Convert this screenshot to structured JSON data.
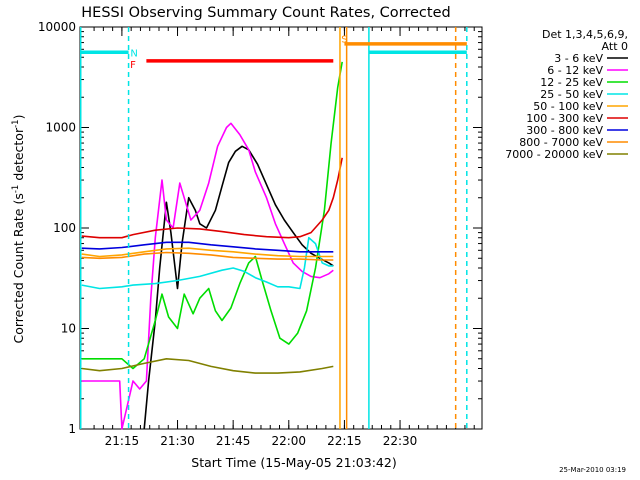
{
  "chart_data": {
    "type": "line",
    "title": "HESSI Observing Summary Count Rates, Corrected",
    "xlabel": "Start Time (15-May-05 21:03:42)",
    "ylabel": "Corrected Count Rate (s",
    "ylabel_sup": "-1",
    "ylabel_mid": " detector",
    "ylabel_end": ")",
    "footer": "25-Mar-2010 03:19",
    "yscale": "log",
    "xlim": [
      21.0617,
      22.8683
    ],
    "ylim": [
      1,
      10000
    ],
    "xticks": [
      {
        "value": 21.25,
        "label": "21:15"
      },
      {
        "value": 21.5,
        "label": "21:30"
      },
      {
        "value": 21.75,
        "label": "21:45"
      },
      {
        "value": 22.0,
        "label": "22:00"
      },
      {
        "value": 22.25,
        "label": "22:15"
      },
      {
        "value": 22.5,
        "label": "22:30"
      }
    ],
    "yticks": [
      {
        "value": 1,
        "label": "1"
      },
      {
        "value": 10,
        "label": "10"
      },
      {
        "value": 100,
        "label": "100"
      },
      {
        "value": 1000,
        "label": "1000"
      },
      {
        "value": 10000,
        "label": "10000"
      }
    ],
    "legend_title": [
      "Det 1,3,4,5,6,9,",
      "Att 0"
    ],
    "legend_position": "right",
    "series": [
      {
        "name": "3 - 6 keV",
        "color": "#000000",
        "points": [
          [
            21.35,
            1
          ],
          [
            21.37,
            3
          ],
          [
            21.4,
            12
          ],
          [
            21.42,
            40
          ],
          [
            21.45,
            180
          ],
          [
            21.47,
            90
          ],
          [
            21.5,
            25
          ],
          [
            21.52,
            70
          ],
          [
            21.55,
            200
          ],
          [
            21.58,
            150
          ],
          [
            21.6,
            110
          ],
          [
            21.63,
            100
          ],
          [
            21.67,
            150
          ],
          [
            21.7,
            260
          ],
          [
            21.73,
            450
          ],
          [
            21.76,
            580
          ],
          [
            21.79,
            650
          ],
          [
            21.82,
            600
          ],
          [
            21.86,
            430
          ],
          [
            21.9,
            270
          ],
          [
            21.94,
            170
          ],
          [
            21.98,
            120
          ],
          [
            22.02,
            90
          ],
          [
            22.06,
            68
          ],
          [
            22.1,
            56
          ],
          [
            22.14,
            50
          ],
          [
            22.18,
            45
          ],
          [
            22.2,
            42
          ]
        ]
      },
      {
        "name": "6 - 12 keV",
        "color": "#ff00ff",
        "points": [
          [
            21.07,
            3
          ],
          [
            21.15,
            3
          ],
          [
            21.2,
            3
          ],
          [
            21.24,
            3
          ],
          [
            21.25,
            1
          ],
          [
            21.3,
            3
          ],
          [
            21.33,
            2.5
          ],
          [
            21.36,
            3
          ],
          [
            21.38,
            20
          ],
          [
            21.4,
            80
          ],
          [
            21.43,
            300
          ],
          [
            21.45,
            120
          ],
          [
            21.48,
            100
          ],
          [
            21.51,
            280
          ],
          [
            21.53,
            200
          ],
          [
            21.56,
            120
          ],
          [
            21.6,
            150
          ],
          [
            21.64,
            280
          ],
          [
            21.68,
            650
          ],
          [
            21.72,
            1000
          ],
          [
            21.74,
            1100
          ],
          [
            21.78,
            850
          ],
          [
            21.82,
            600
          ],
          [
            21.85,
            360
          ],
          [
            21.9,
            200
          ],
          [
            21.94,
            110
          ],
          [
            21.98,
            70
          ],
          [
            22.02,
            45
          ],
          [
            22.06,
            37
          ],
          [
            22.1,
            33
          ],
          [
            22.14,
            32
          ],
          [
            22.18,
            35
          ],
          [
            22.2,
            38
          ]
        ]
      },
      {
        "name": "12 - 25 keV",
        "color": "#00dd00",
        "points": [
          [
            21.07,
            5
          ],
          [
            21.15,
            5
          ],
          [
            21.25,
            5
          ],
          [
            21.3,
            4
          ],
          [
            21.35,
            5
          ],
          [
            21.4,
            12
          ],
          [
            21.43,
            22
          ],
          [
            21.46,
            13
          ],
          [
            21.5,
            10
          ],
          [
            21.53,
            22
          ],
          [
            21.57,
            14
          ],
          [
            21.6,
            20
          ],
          [
            21.64,
            25
          ],
          [
            21.67,
            15
          ],
          [
            21.7,
            12
          ],
          [
            21.74,
            16
          ],
          [
            21.78,
            28
          ],
          [
            21.82,
            45
          ],
          [
            21.85,
            52
          ],
          [
            21.88,
            30
          ],
          [
            21.92,
            15
          ],
          [
            21.96,
            8
          ],
          [
            22.0,
            7
          ],
          [
            22.04,
            9
          ],
          [
            22.08,
            15
          ],
          [
            22.12,
            40
          ],
          [
            22.16,
            150
          ],
          [
            22.19,
            700
          ],
          [
            22.22,
            2500
          ],
          [
            22.24,
            4500
          ]
        ]
      },
      {
        "name": "25 - 50 keV",
        "color": "#00e5e5",
        "points": [
          [
            21.07,
            27
          ],
          [
            21.15,
            25
          ],
          [
            21.25,
            26
          ],
          [
            21.3,
            27
          ],
          [
            21.4,
            28
          ],
          [
            21.5,
            30
          ],
          [
            21.6,
            33
          ],
          [
            21.7,
            38
          ],
          [
            21.75,
            40
          ],
          [
            21.8,
            37
          ],
          [
            21.85,
            32
          ],
          [
            21.9,
            29
          ],
          [
            21.95,
            26
          ],
          [
            22.0,
            26
          ],
          [
            22.05,
            25
          ],
          [
            22.07,
            40
          ],
          [
            22.09,
            80
          ],
          [
            22.12,
            70
          ],
          [
            22.15,
            45
          ],
          [
            22.18,
            42
          ],
          [
            22.2,
            42
          ]
        ]
      },
      {
        "name": "50 - 100 keV",
        "color": "#ffa500",
        "points": [
          [
            21.07,
            55
          ],
          [
            21.15,
            52
          ],
          [
            21.25,
            54
          ],
          [
            21.35,
            58
          ],
          [
            21.45,
            62
          ],
          [
            21.55,
            63
          ],
          [
            21.65,
            60
          ],
          [
            21.75,
            58
          ],
          [
            21.85,
            55
          ],
          [
            21.95,
            53
          ],
          [
            22.05,
            52
          ],
          [
            22.15,
            52
          ],
          [
            22.2,
            52
          ]
        ]
      },
      {
        "name": "100 - 300 keV",
        "color": "#dd0000",
        "points": [
          [
            21.07,
            83
          ],
          [
            21.15,
            80
          ],
          [
            21.25,
            80
          ],
          [
            21.3,
            86
          ],
          [
            21.4,
            95
          ],
          [
            21.5,
            100
          ],
          [
            21.6,
            98
          ],
          [
            21.7,
            92
          ],
          [
            21.8,
            86
          ],
          [
            21.9,
            82
          ],
          [
            22.0,
            80
          ],
          [
            22.05,
            82
          ],
          [
            22.1,
            90
          ],
          [
            22.15,
            120
          ],
          [
            22.18,
            150
          ],
          [
            22.2,
            200
          ],
          [
            22.22,
            300
          ],
          [
            22.24,
            500
          ]
        ]
      },
      {
        "name": "300 - 800 keV",
        "color": "#0000dd",
        "points": [
          [
            21.07,
            63
          ],
          [
            21.15,
            62
          ],
          [
            21.25,
            64
          ],
          [
            21.35,
            68
          ],
          [
            21.45,
            72
          ],
          [
            21.55,
            72
          ],
          [
            21.65,
            68
          ],
          [
            21.75,
            65
          ],
          [
            21.85,
            62
          ],
          [
            21.95,
            60
          ],
          [
            22.05,
            58
          ],
          [
            22.15,
            58
          ],
          [
            22.2,
            58
          ]
        ]
      },
      {
        "name": "800 - 7000 keV",
        "color": "#ff8c00",
        "points": [
          [
            21.07,
            51
          ],
          [
            21.15,
            50
          ],
          [
            21.25,
            51
          ],
          [
            21.35,
            55
          ],
          [
            21.45,
            57
          ],
          [
            21.55,
            56
          ],
          [
            21.65,
            54
          ],
          [
            21.75,
            51
          ],
          [
            21.85,
            50
          ],
          [
            21.95,
            49
          ],
          [
            22.05,
            49
          ],
          [
            22.15,
            48
          ],
          [
            22.2,
            48
          ]
        ]
      },
      {
        "name": "7000 - 20000 keV",
        "color": "#808000",
        "points": [
          [
            21.07,
            4
          ],
          [
            21.15,
            3.8
          ],
          [
            21.25,
            4
          ],
          [
            21.35,
            4.5
          ],
          [
            21.45,
            5
          ],
          [
            21.55,
            4.8
          ],
          [
            21.65,
            4.2
          ],
          [
            21.75,
            3.8
          ],
          [
            21.85,
            3.6
          ],
          [
            21.95,
            3.6
          ],
          [
            22.05,
            3.7
          ],
          [
            22.15,
            4
          ],
          [
            22.2,
            4.2
          ]
        ]
      }
    ],
    "status_bars": [
      {
        "label": "",
        "color": "#00e5e5",
        "y": 5600,
        "x": [
          21.0617,
          21.28
        ]
      },
      {
        "label": "F",
        "color": "#ff0000",
        "y": 4600,
        "x": [
          21.36,
          22.2
        ]
      },
      {
        "label": "S",
        "color": "#ff8c00",
        "y": 6800,
        "x": [
          22.25,
          22.8
        ]
      },
      {
        "label": "",
        "color": "#00e5e5",
        "y": 5600,
        "x": [
          22.36,
          22.8
        ]
      }
    ],
    "status_labels": [
      {
        "text": "N",
        "color": "#00e5e5",
        "x": 21.305,
        "y": 5600
      },
      {
        "text": "F",
        "color": "#ff0000",
        "x": 21.3,
        "y": 4300
      },
      {
        "text": "S",
        "color": "#ff8c00",
        "x": 22.25,
        "y": 7700
      }
    ],
    "vertical_lines": [
      {
        "color": "#00e5e5",
        "x": 21.065,
        "dashed": false
      },
      {
        "color": "#00e5e5",
        "x": 21.28,
        "dashed": true
      },
      {
        "color": "#ffa500",
        "x": 22.23,
        "dashed": false
      },
      {
        "color": "#ff8c00",
        "x": 22.26,
        "dashed": false
      },
      {
        "color": "#00e5e5",
        "x": 22.36,
        "dashed": false
      },
      {
        "color": "#ff8c00",
        "x": 22.75,
        "dashed": true
      },
      {
        "color": "#00e5e5",
        "x": 22.8,
        "dashed": true
      }
    ]
  }
}
